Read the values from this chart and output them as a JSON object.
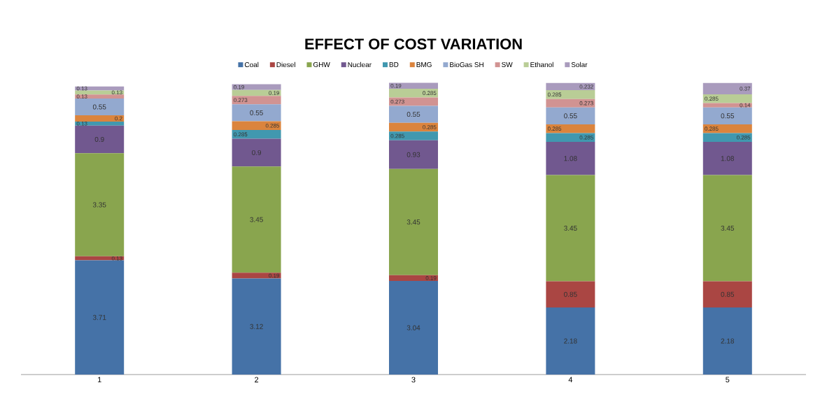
{
  "chart_data": {
    "type": "bar",
    "title": "EFFECT OF COST VARIATION",
    "stacked": true,
    "data_labels": true,
    "legend": "top",
    "categories": [
      "1",
      "2",
      "3",
      "4",
      "5"
    ],
    "series": [
      {
        "name": "Coal",
        "color": "#4572a7",
        "values": [
          3.71,
          3.12,
          3.04,
          2.18,
          2.18
        ]
      },
      {
        "name": "Diesel",
        "color": "#aa4643",
        "values": [
          0.13,
          0.19,
          0.19,
          0.85,
          0.85
        ]
      },
      {
        "name": "GHW",
        "color": "#89a54e",
        "values": [
          3.35,
          3.45,
          3.45,
          3.45,
          3.45
        ]
      },
      {
        "name": "Nuclear",
        "color": "#71588f",
        "values": [
          0.9,
          0.9,
          0.93,
          1.08,
          1.08
        ]
      },
      {
        "name": "BD",
        "color": "#4198af",
        "values": [
          0.13,
          0.285,
          0.285,
          0.285,
          0.285
        ]
      },
      {
        "name": "BMG",
        "color": "#db843d",
        "values": [
          0.2,
          0.285,
          0.285,
          0.285,
          0.285
        ]
      },
      {
        "name": "BioGas SH",
        "color": "#93a9cf",
        "values": [
          0.55,
          0.55,
          0.55,
          0.55,
          0.55
        ]
      },
      {
        "name": "SW",
        "color": "#d19392",
        "values": [
          0.13,
          0.273,
          0.273,
          0.273,
          0.14
        ]
      },
      {
        "name": "Ethanol",
        "color": "#b9cd96",
        "values": [
          0.13,
          0.19,
          0.285,
          0.285,
          0.285
        ]
      },
      {
        "name": "Solar",
        "color": "#a99bbd",
        "values": [
          0.13,
          0.19,
          0.19,
          0.232,
          0.37
        ]
      }
    ]
  }
}
